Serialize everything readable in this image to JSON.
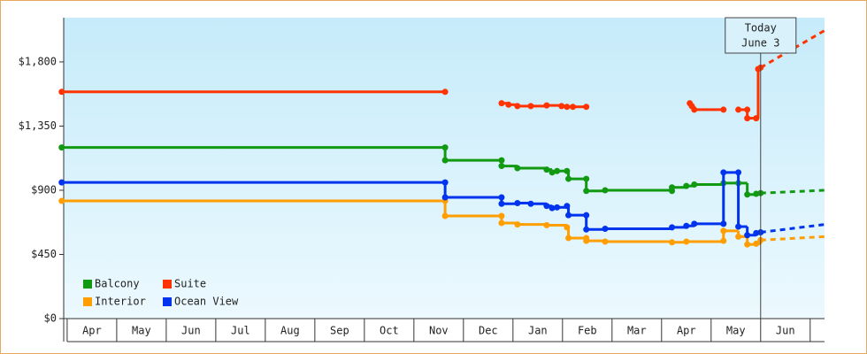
{
  "chart_data": {
    "type": "step-line",
    "xlim": [
      -0.07,
      15.29
    ],
    "ylim": [
      0,
      2110
    ],
    "yticks": [
      {
        "value": 0,
        "label": "$0"
      },
      {
        "value": 450,
        "label": "$450"
      },
      {
        "value": 900,
        "label": "$900"
      },
      {
        "value": 1350,
        "label": "$1,350"
      },
      {
        "value": 1800,
        "label": "$1,800"
      }
    ],
    "categories": [
      "Apr",
      "May",
      "Jun",
      "Jul",
      "Aug",
      "Sep",
      "Oct",
      "Nov",
      "Dec",
      "Jan",
      "Feb",
      "Mar",
      "Apr",
      "May",
      "Jun"
    ],
    "today": {
      "x": 14.0,
      "label": [
        "Today",
        "June 3"
      ]
    },
    "series": [
      {
        "name": "Balcony",
        "color": "#119911",
        "x": [
          -0.11,
          7.63,
          7.63,
          8.77,
          8.77,
          9.09,
          9.68,
          9.79,
          9.89,
          10.09,
          10.12,
          10.48,
          10.48,
          10.86,
          12.21,
          12.21,
          12.5,
          12.66,
          13.25,
          13.55,
          13.73,
          13.91,
          14.0
        ],
        "values": [
          1200,
          1200,
          1110,
          1110,
          1070,
          1055,
          1045,
          1025,
          1035,
          1035,
          980,
          980,
          895,
          900,
          895,
          920,
          930,
          940,
          950,
          950,
          870,
          875,
          880
        ],
        "forecast": {
          "x": [
            14.0,
            15.29
          ],
          "values": [
            880,
            900
          ]
        }
      },
      {
        "name": "Suite",
        "color": "#ff3300",
        "x": [
          -0.11,
          7.63,
          8.0,
          8.77,
          8.91,
          9.09,
          9.36,
          9.68,
          9.98,
          10.09,
          10.21,
          10.48,
          11.5,
          12.57,
          12.61,
          12.66,
          13.25,
          13.4,
          13.55,
          13.73,
          13.73,
          13.91,
          13.95,
          14.0
        ],
        "values": [
          1590,
          1590,
          null,
          1510,
          1500,
          1490,
          1490,
          1495,
          1490,
          1485,
          1485,
          1485,
          null,
          1510,
          1490,
          1465,
          1465,
          null,
          1465,
          1465,
          1405,
          1405,
          1750,
          1760
        ],
        "forecast": {
          "x": [
            14.0,
            15.29
          ],
          "values": [
            1760,
            2020
          ]
        }
      },
      {
        "name": "Interior",
        "color": "#ff9e00",
        "x": [
          -0.11,
          7.63,
          7.63,
          8.77,
          8.77,
          9.09,
          9.68,
          10.09,
          10.12,
          10.48,
          10.48,
          10.86,
          12.21,
          12.5,
          13.25,
          13.25,
          13.55,
          13.73,
          13.91,
          14.0
        ],
        "values": [
          825,
          825,
          720,
          720,
          670,
          660,
          655,
          640,
          565,
          565,
          545,
          540,
          535,
          540,
          545,
          615,
          575,
          520,
          525,
          550
        ],
        "forecast": {
          "x": [
            14.0,
            15.29
          ],
          "values": [
            550,
            575
          ]
        }
      },
      {
        "name": "Ocean View",
        "color": "#0033ee",
        "x": [
          -0.11,
          7.63,
          7.63,
          8.77,
          8.77,
          9.09,
          9.36,
          9.68,
          9.79,
          9.89,
          10.09,
          10.12,
          10.48,
          10.48,
          10.86,
          12.21,
          12.5,
          12.66,
          13.25,
          13.25,
          13.55,
          13.55,
          13.73,
          13.91,
          14.0
        ],
        "values": [
          955,
          955,
          850,
          850,
          805,
          810,
          805,
          790,
          775,
          780,
          790,
          725,
          725,
          625,
          630,
          640,
          650,
          665,
          665,
          1025,
          1025,
          645,
          585,
          600,
          605
        ],
        "forecast": {
          "x": [
            14.0,
            15.29
          ],
          "values": [
            605,
            660
          ]
        }
      }
    ]
  }
}
